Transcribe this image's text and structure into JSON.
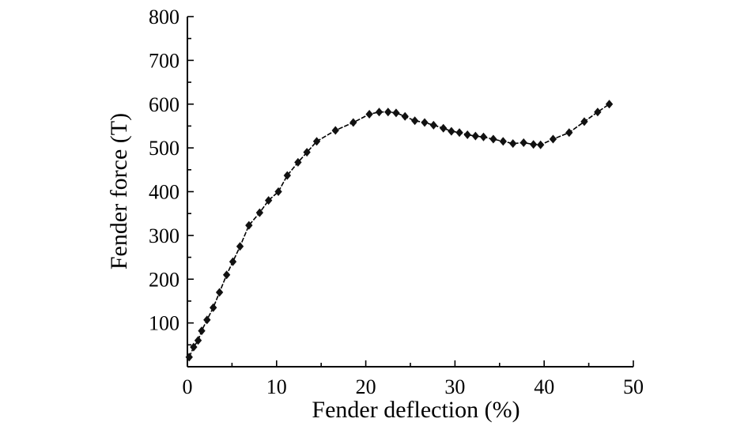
{
  "chart_data": {
    "type": "line",
    "xlabel": "Fender deflection (%)",
    "ylabel": "Fender force (T)",
    "xlim": [
      0,
      50
    ],
    "ylim": [
      0,
      800
    ],
    "xticks": [
      0,
      10,
      20,
      30,
      40,
      50
    ],
    "yticks": [
      100,
      200,
      300,
      400,
      500,
      600,
      700,
      800
    ],
    "grid": false,
    "series": [
      {
        "marker": "diamond",
        "color": "#000000",
        "x": [
          0.2,
          0.7,
          1.2,
          1.6,
          2.2,
          2.9,
          3.6,
          4.4,
          5.1,
          5.9,
          6.9,
          8.1,
          9.1,
          10.2,
          11.2,
          12.4,
          13.4,
          14.5,
          16.6,
          18.6,
          20.4,
          21.5,
          22.5,
          23.4,
          24.4,
          25.5,
          26.6,
          27.6,
          28.7,
          29.6,
          30.5,
          31.4,
          32.3,
          33.2,
          34.3,
          35.4,
          36.5,
          37.7,
          38.8,
          39.6,
          41.0,
          42.8,
          44.5,
          46.0,
          47.3
        ],
        "y": [
          22,
          45,
          60,
          82,
          107,
          135,
          170,
          210,
          240,
          275,
          323,
          352,
          380,
          400,
          437,
          467,
          490,
          515,
          540,
          558,
          577,
          582,
          582,
          580,
          572,
          562,
          558,
          552,
          545,
          538,
          535,
          530,
          527,
          525,
          520,
          515,
          510,
          512,
          508,
          507,
          520,
          535,
          560,
          582,
          600
        ]
      }
    ]
  }
}
